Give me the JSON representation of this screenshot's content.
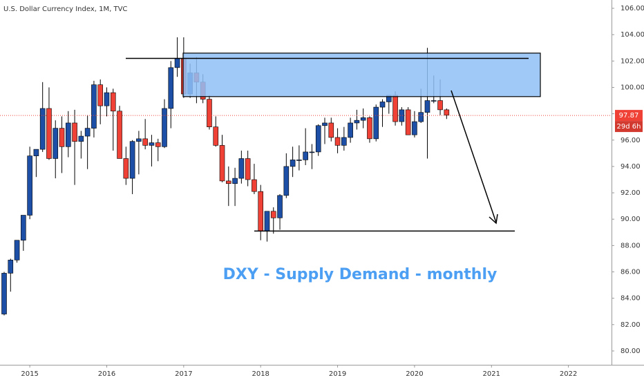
{
  "chart_data": {
    "type": "candlestick",
    "title": "U.S. Dollar Currency Index, 1M, TVC",
    "annotation": "DXY - Supply Demand - monthly",
    "categories": [
      null,
      null,
      null,
      null,
      "2015",
      null,
      null,
      null,
      null,
      null,
      null,
      null,
      null,
      null,
      null,
      null,
      "2016",
      null,
      null,
      null,
      null,
      null,
      null,
      null,
      null,
      null,
      null,
      null,
      "2017",
      null,
      null,
      null,
      null,
      null,
      null,
      null,
      null,
      null,
      null,
      null,
      "2018",
      null,
      null,
      null,
      null,
      null,
      null,
      null,
      null,
      null,
      null,
      null,
      "2019",
      null,
      null,
      null,
      null,
      null,
      null,
      null,
      null,
      null,
      null,
      null,
      "2020",
      null,
      null,
      null,
      null,
      null,
      null,
      null,
      null,
      null,
      null,
      null,
      "2021",
      null,
      null,
      null,
      null,
      null,
      null,
      null,
      null,
      null,
      null,
      null,
      "2022"
    ],
    "open": [
      82.8,
      85.9,
      86.9,
      88.4,
      90.3,
      94.8,
      95.3,
      98.4,
      94.6,
      96.9,
      95.5,
      97.3,
      95.9,
      96.3,
      96.9,
      100.2,
      98.6,
      99.6,
      98.2,
      94.6,
      93.1,
      95.9,
      96.1,
      95.6,
      95.8,
      95.5,
      98.4,
      101.5,
      102.2,
      99.5,
      101.1,
      100.4,
      99.1,
      97.0,
      95.6,
      92.9,
      92.7,
      93.1,
      94.6,
      93.0,
      92.1,
      89.1,
      90.6,
      90.1,
      91.8,
      94.0,
      94.5,
      94.5,
      95.1,
      95.1,
      97.1,
      97.3,
      96.2,
      95.6,
      96.2,
      97.3,
      97.5,
      97.7,
      96.1,
      98.5,
      98.9,
      99.4,
      97.4,
      98.3,
      96.4,
      97.4,
      98.1,
      99.0,
      99.0,
      98.3,
      null,
      null,
      null,
      null,
      null,
      null,
      null,
      null,
      null,
      null,
      null,
      null,
      null,
      null,
      null,
      null,
      null,
      null,
      null
    ],
    "high": [
      86.0,
      87.0,
      88.4,
      90.3,
      95.5,
      95.3,
      100.4,
      100.0,
      97.5,
      97.8,
      98.2,
      98.3,
      96.7,
      97.9,
      100.5,
      100.6,
      100.0,
      99.9,
      98.6,
      95.5,
      96.0,
      96.7,
      97.6,
      96.4,
      96.1,
      99.1,
      102.0,
      103.8,
      103.8,
      101.8,
      102.3,
      101.0,
      99.4,
      97.8,
      96.4,
      94.0,
      93.9,
      95.2,
      95.2,
      94.2,
      92.6,
      90.6,
      90.9,
      91.9,
      95.0,
      95.5,
      95.6,
      96.9,
      95.7,
      97.2,
      97.7,
      97.7,
      96.9,
      97.0,
      97.7,
      98.3,
      98.4,
      97.8,
      98.7,
      99.1,
      99.4,
      99.7,
      98.5,
      98.5,
      98.2,
      99.9,
      103.0,
      100.9,
      100.6,
      98.4,
      null,
      null,
      null,
      null,
      null,
      null,
      null,
      null,
      null,
      null,
      null,
      null,
      null,
      null,
      null,
      null,
      null,
      null,
      null
    ],
    "low": [
      82.7,
      84.5,
      86.7,
      87.6,
      90.0,
      93.2,
      95.1,
      94.5,
      93.1,
      93.5,
      94.7,
      92.6,
      94.6,
      93.8,
      96.2,
      97.2,
      97.8,
      95.2,
      94.6,
      92.6,
      91.9,
      93.4,
      95.3,
      94.0,
      94.4,
      95.4,
      96.9,
      100.8,
      99.2,
      99.2,
      98.8,
      98.8,
      96.8,
      95.5,
      92.8,
      91.0,
      91.0,
      92.7,
      92.5,
      91.9,
      88.4,
      88.3,
      88.9,
      89.2,
      91.6,
      93.2,
      93.7,
      94.1,
      93.8,
      94.8,
      95.7,
      95.9,
      95.0,
      95.2,
      95.8,
      96.8,
      96.9,
      95.8,
      95.9,
      97.0,
      98.0,
      97.1,
      97.1,
      96.4,
      96.2,
      97.3,
      94.6,
      98.8,
      97.9,
      97.6,
      null,
      null,
      null,
      null,
      null,
      null,
      null,
      null,
      null,
      null,
      null,
      null,
      null,
      null,
      null,
      null,
      null,
      null,
      null
    ],
    "close": [
      85.9,
      86.9,
      88.4,
      90.3,
      94.8,
      95.3,
      98.4,
      94.6,
      96.9,
      95.5,
      97.3,
      95.9,
      96.3,
      96.9,
      100.2,
      98.6,
      99.6,
      98.2,
      94.6,
      93.1,
      95.9,
      96.1,
      95.6,
      95.8,
      95.5,
      98.4,
      101.5,
      102.2,
      99.5,
      101.1,
      100.4,
      99.1,
      97.0,
      95.6,
      92.9,
      92.7,
      93.1,
      94.6,
      93.0,
      92.1,
      89.1,
      90.6,
      90.1,
      91.8,
      94.0,
      94.5,
      94.5,
      95.1,
      95.1,
      97.1,
      97.3,
      96.2,
      95.6,
      96.2,
      97.3,
      97.5,
      97.7,
      96.1,
      98.5,
      98.9,
      99.4,
      97.4,
      98.3,
      96.4,
      97.4,
      98.1,
      99.0,
      99.0,
      98.3,
      97.9,
      null,
      null,
      null,
      null,
      null,
      null,
      null,
      null,
      null,
      null,
      null,
      null,
      null,
      null,
      null,
      null,
      null,
      null,
      null
    ],
    "up_color": "#1c4fa5",
    "down_color": "#ef4136",
    "zone": [
      99.3,
      102.6
    ],
    "zone_color": "#8fbff7",
    "levels": [
      102.2,
      89.1
    ],
    "last_price": 97.87,
    "countdown": "29d 6h",
    "ylim": [
      78.95,
      106.63
    ],
    "yticks": [
      {
        "value": 80,
        "label": "80.00"
      },
      {
        "value": 82,
        "label": "82.00"
      },
      {
        "value": 84,
        "label": "84.00"
      },
      {
        "value": 86,
        "label": "86.00"
      },
      {
        "value": 88,
        "label": "88.00"
      },
      {
        "value": 90,
        "label": "90.00"
      },
      {
        "value": 92,
        "label": "92.00"
      },
      {
        "value": 94,
        "label": "94.00"
      },
      {
        "value": 96,
        "label": "96.00"
      },
      {
        "value": 98,
        "label": "98.00"
      },
      {
        "value": 100,
        "label": "100.00"
      },
      {
        "value": 102,
        "label": "102.00"
      },
      {
        "value": 104,
        "label": "104.00"
      },
      {
        "value": 106,
        "label": "106.00"
      }
    ],
    "grid": false
  }
}
